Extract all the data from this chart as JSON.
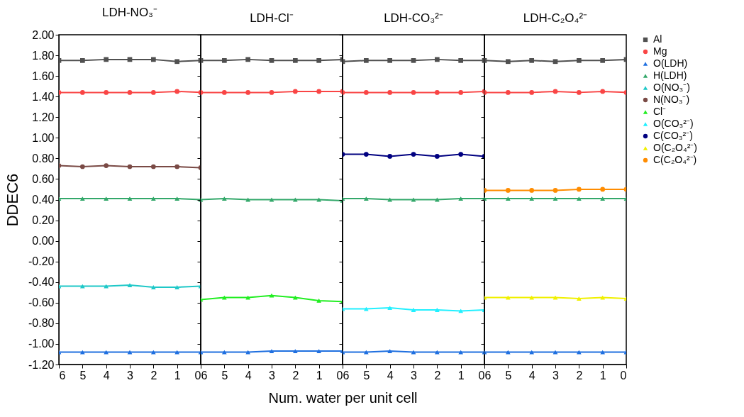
{
  "chart_data": [
    {
      "type": "line",
      "title": "LDH-NO₃⁻",
      "ylabel": "DDEC6",
      "legend": "right",
      "x": [
        6,
        5,
        4,
        3,
        2,
        1,
        0
      ],
      "xlim": [
        6,
        0
      ],
      "xticks": [
        6,
        5,
        4,
        3,
        2,
        1,
        0
      ],
      "ylim": [
        -1.2,
        2.0
      ],
      "yticks": [
        {
          "value": -1.2,
          "label": "-1.20"
        },
        {
          "value": -1.0,
          "label": "-1.00"
        },
        {
          "value": -0.8,
          "label": "-0.80"
        },
        {
          "value": -0.6,
          "label": "-0.60"
        },
        {
          "value": -0.4,
          "label": "-0.40"
        },
        {
          "value": -0.2,
          "label": "-0.20"
        },
        {
          "value": 0,
          "label": "0.00"
        },
        {
          "value": 0.2,
          "label": "0.20"
        },
        {
          "value": 0.4,
          "label": "0.40"
        },
        {
          "value": 0.6,
          "label": "0.60"
        },
        {
          "value": 0.8,
          "label": "0.80"
        },
        {
          "value": 1.0,
          "label": "1.00"
        },
        {
          "value": 1.2,
          "label": "1.20"
        },
        {
          "value": 1.4,
          "label": "1.40"
        },
        {
          "value": 1.6,
          "label": "1.60"
        },
        {
          "value": 1.8,
          "label": "1.80"
        },
        {
          "value": 2.0,
          "label": "2.00"
        }
      ],
      "series": [
        {
          "name": "Al",
          "color": "#505050",
          "marker": "square",
          "values": [
            1.75,
            1.75,
            1.76,
            1.76,
            1.76,
            1.74,
            1.75
          ]
        },
        {
          "name": "Mg",
          "color": "#f94545",
          "marker": "circle",
          "values": [
            1.44,
            1.44,
            1.44,
            1.44,
            1.44,
            1.45,
            1.44
          ]
        },
        {
          "name": "O(LDH)",
          "color": "#2070e0",
          "marker": "triangle",
          "values": [
            -1.08,
            -1.08,
            -1.08,
            -1.08,
            -1.08,
            -1.08,
            -1.08
          ]
        },
        {
          "name": "H(LDH)",
          "color": "#33a86a",
          "marker": "triangle",
          "values": [
            0.41,
            0.41,
            0.41,
            0.41,
            0.41,
            0.41,
            0.4
          ]
        },
        {
          "name": "O(NO₃⁻)",
          "color": "#1fc8c8",
          "marker": "triangle",
          "values": [
            -0.44,
            -0.44,
            -0.44,
            -0.43,
            -0.45,
            -0.45,
            -0.44
          ]
        },
        {
          "name": "N(NO₃⁻)",
          "color": "#7a4a45",
          "marker": "circle",
          "values": [
            0.73,
            0.72,
            0.73,
            0.72,
            0.72,
            0.72,
            0.71
          ]
        }
      ]
    },
    {
      "type": "line",
      "title": "LDH-Cl⁻",
      "xlabel": "Num. water per unit cell",
      "legend": "right",
      "x": [
        6,
        5,
        4,
        3,
        2,
        1,
        0
      ],
      "xlim": [
        6,
        0
      ],
      "xticks": [
        6,
        5,
        4,
        3,
        2,
        1,
        0
      ],
      "ylim": [
        -1.2,
        2.0
      ],
      "yticks": [
        -1.2,
        -1.0,
        -0.8,
        -0.6,
        -0.4,
        -0.2,
        0,
        0.2,
        0.4,
        0.6,
        0.8,
        1.0,
        1.2,
        1.4,
        1.6,
        1.8,
        2.0
      ],
      "tick_labels": "x",
      "series": [
        {
          "name": "Al",
          "color": "#505050",
          "marker": "square",
          "values": [
            1.75,
            1.75,
            1.76,
            1.75,
            1.75,
            1.75,
            1.76
          ]
        },
        {
          "name": "Mg",
          "color": "#f94545",
          "marker": "circle",
          "values": [
            1.44,
            1.44,
            1.44,
            1.44,
            1.45,
            1.45,
            1.45
          ]
        },
        {
          "name": "O(LDH)",
          "color": "#2070e0",
          "marker": "triangle",
          "values": [
            -1.08,
            -1.08,
            -1.08,
            -1.07,
            -1.07,
            -1.07,
            -1.07
          ]
        },
        {
          "name": "H(LDH)",
          "color": "#33a86a",
          "marker": "triangle",
          "values": [
            0.4,
            0.41,
            0.4,
            0.4,
            0.4,
            0.4,
            0.39
          ]
        },
        {
          "name": "Cl⁻",
          "color": "#22ee22",
          "marker": "triangle",
          "values": [
            -0.57,
            -0.55,
            -0.55,
            -0.53,
            -0.55,
            -0.58,
            -0.59
          ]
        }
      ]
    },
    {
      "type": "line",
      "title": "LDH-CO₃²⁻",
      "legend": "right",
      "x": [
        6,
        5,
        4,
        3,
        2,
        1,
        0
      ],
      "xlim": [
        6,
        0
      ],
      "xticks": [
        6,
        5,
        4,
        3,
        2,
        1,
        0
      ],
      "ylim": [
        -1.2,
        2.0
      ],
      "yticks": [
        -1.2,
        -1.0,
        -0.8,
        -0.6,
        -0.4,
        -0.2,
        0,
        0.2,
        0.4,
        0.6,
        0.8,
        1.0,
        1.2,
        1.4,
        1.6,
        1.8,
        2.0
      ],
      "tick_labels": "x",
      "series": [
        {
          "name": "Al",
          "color": "#505050",
          "marker": "square",
          "values": [
            1.74,
            1.75,
            1.75,
            1.75,
            1.76,
            1.75,
            1.75
          ]
        },
        {
          "name": "Mg",
          "color": "#f94545",
          "marker": "circle",
          "values": [
            1.44,
            1.44,
            1.44,
            1.44,
            1.44,
            1.44,
            1.45
          ]
        },
        {
          "name": "O(LDH)",
          "color": "#2070e0",
          "marker": "triangle",
          "values": [
            -1.08,
            -1.08,
            -1.07,
            -1.08,
            -1.08,
            -1.08,
            -1.08
          ]
        },
        {
          "name": "H(LDH)",
          "color": "#33a86a",
          "marker": "triangle",
          "values": [
            0.41,
            0.41,
            0.4,
            0.4,
            0.4,
            0.41,
            0.41
          ]
        },
        {
          "name": "O(CO₃²⁻)",
          "color": "#22f0ff",
          "marker": "triangle",
          "values": [
            -0.66,
            -0.66,
            -0.65,
            -0.67,
            -0.67,
            -0.68,
            -0.67
          ]
        },
        {
          "name": "C(CO₃²⁻)",
          "color": "#000080",
          "marker": "circle",
          "values": [
            0.84,
            0.84,
            0.82,
            0.84,
            0.82,
            0.84,
            0.82
          ]
        }
      ]
    },
    {
      "type": "line",
      "title": "LDH-C₂O₄²⁻",
      "x": [
        6,
        5,
        4,
        3,
        2,
        1,
        0
      ],
      "xlim": [
        6,
        0
      ],
      "xticks": [
        6,
        5,
        4,
        3,
        2,
        1,
        0
      ],
      "ylim": [
        -1.2,
        2.0
      ],
      "yticks": [
        -1.2,
        -1.0,
        -0.8,
        -0.6,
        -0.4,
        -0.2,
        0,
        0.2,
        0.4,
        0.6,
        0.8,
        1.0,
        1.2,
        1.4,
        1.6,
        1.8,
        2.0
      ],
      "tick_labels": "x",
      "legend": "right",
      "series": [
        {
          "name": "Al",
          "color": "#505050",
          "marker": "square",
          "values": [
            1.75,
            1.74,
            1.75,
            1.74,
            1.75,
            1.75,
            1.76
          ]
        },
        {
          "name": "Mg",
          "color": "#f94545",
          "marker": "circle",
          "values": [
            1.44,
            1.44,
            1.44,
            1.45,
            1.44,
            1.45,
            1.44
          ]
        },
        {
          "name": "O(LDH)",
          "color": "#2070e0",
          "marker": "triangle",
          "values": [
            -1.08,
            -1.08,
            -1.08,
            -1.08,
            -1.08,
            -1.08,
            -1.08
          ]
        },
        {
          "name": "H(LDH)",
          "color": "#33a86a",
          "marker": "triangle",
          "values": [
            0.41,
            0.41,
            0.41,
            0.41,
            0.41,
            0.41,
            0.41
          ]
        },
        {
          "name": "O(C₂O₄²⁻)",
          "color": "#f0f000",
          "marker": "triangle",
          "values": [
            -0.55,
            -0.55,
            -0.55,
            -0.55,
            -0.56,
            -0.55,
            -0.56
          ]
        },
        {
          "name": "C(C₂O₄²⁻)",
          "color": "#ff8c00",
          "marker": "circle",
          "values": [
            0.49,
            0.49,
            0.49,
            0.49,
            0.5,
            0.5,
            0.5
          ]
        }
      ]
    }
  ]
}
